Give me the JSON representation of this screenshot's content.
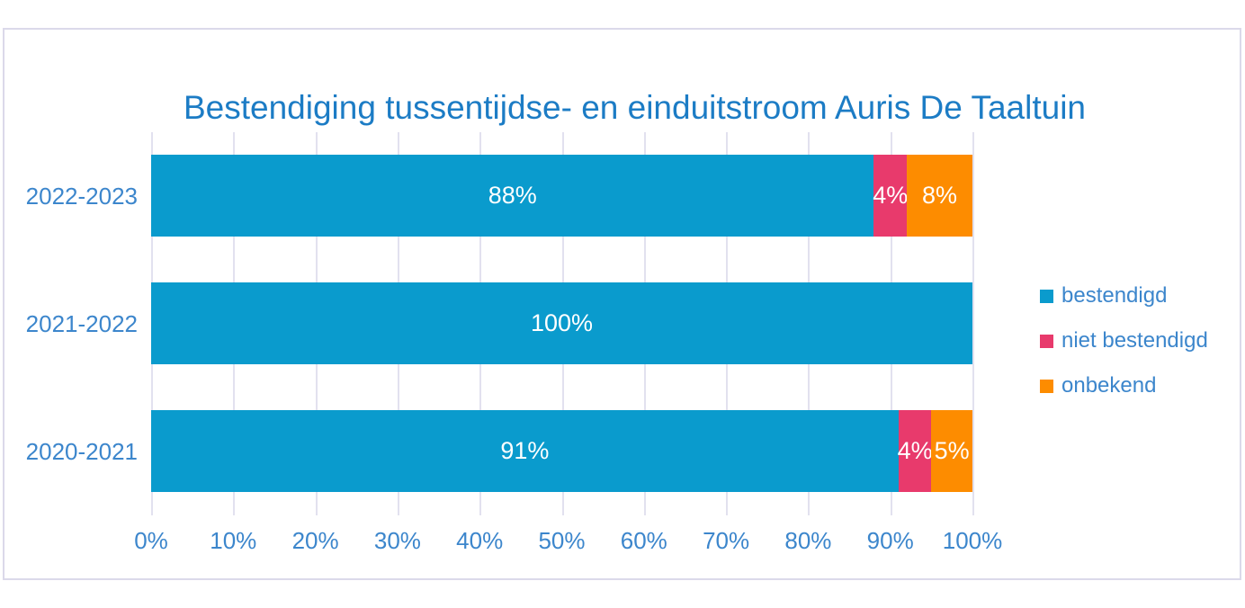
{
  "chart_data": {
    "type": "bar",
    "orientation": "horizontal",
    "stacked": true,
    "title": "Bestendiging tussentijdse- en einduitstroom Auris De Taaltuin",
    "categories": [
      "2022-2023",
      "2021-2022",
      "2020-2021"
    ],
    "series": [
      {
        "name": "bestendigd",
        "color": "#0A9BCD",
        "values": [
          88,
          100,
          91
        ]
      },
      {
        "name": "niet bestendigd",
        "color": "#E83A6C",
        "values": [
          4,
          0,
          4
        ]
      },
      {
        "name": "onbekend",
        "color": "#FD8C00",
        "values": [
          8,
          0,
          5
        ]
      }
    ],
    "bar_labels": [
      [
        "88%",
        "4%",
        "8%"
      ],
      [
        "100%",
        "",
        ""
      ],
      [
        "91%",
        "4%",
        "5%"
      ]
    ],
    "x_ticks": [
      "0%",
      "10%",
      "20%",
      "30%",
      "40%",
      "50%",
      "60%",
      "70%",
      "80%",
      "90%",
      "100%"
    ],
    "xlim": [
      0,
      100
    ],
    "grid": "vertical",
    "legend_position": "right"
  },
  "styles": {
    "title_color": "#1C7CC5",
    "axis_text_color": "#3C86CC",
    "legend_text_color": "#3C86CC",
    "gridline_color": "#E2E1EF",
    "frame_border_color": "#DBD9EA",
    "bar_label_color": "#FFFFFF",
    "background_color": "#FFFFFF"
  }
}
